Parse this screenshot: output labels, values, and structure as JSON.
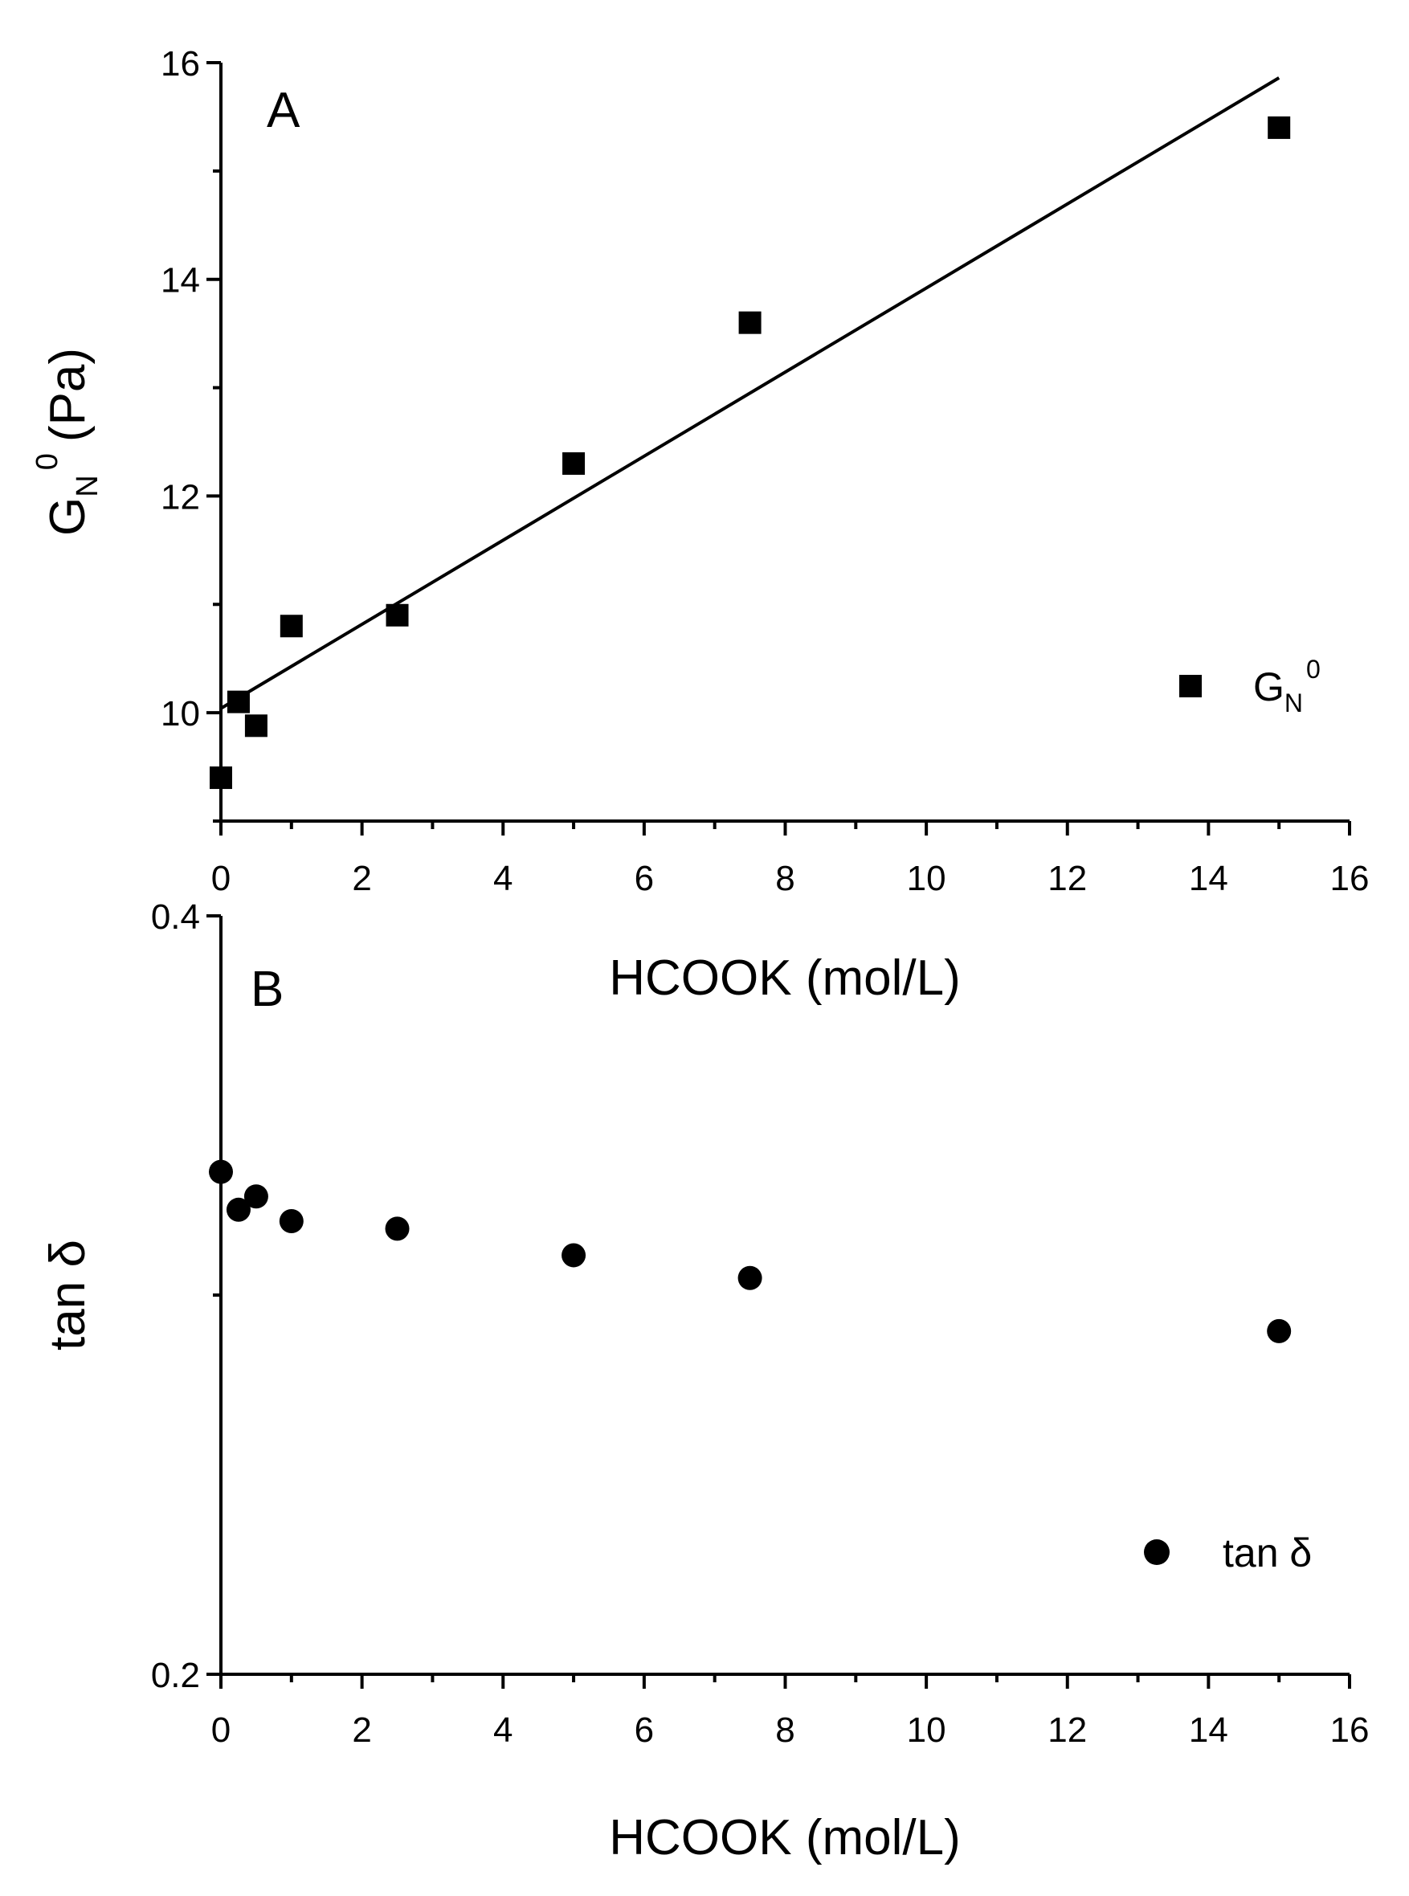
{
  "chart_data": [
    {
      "panel": "A",
      "type": "scatter",
      "xlabel": "HCOOK (mol/L)",
      "ylabel": "G_N^0 (Pa)",
      "ylabel_parts": {
        "main": "G",
        "sub": "N",
        "sup": "0",
        "unit": "(Pa)"
      },
      "xlim": [
        0,
        16
      ],
      "ylim": [
        9,
        16
      ],
      "x_ticks": [
        0,
        2,
        4,
        6,
        8,
        10,
        12,
        14,
        16
      ],
      "y_ticks": [
        10,
        12,
        14,
        16
      ],
      "x_tick_labels": [
        "0",
        "2",
        "4",
        "6",
        "8",
        "10",
        "12",
        "14",
        "16"
      ],
      "y_tick_labels": [
        "10",
        "12",
        "14",
        "16"
      ],
      "marker": "square",
      "legend": {
        "label": "G_N^0",
        "main": "G",
        "sub": "N",
        "sup": "0",
        "position": "right"
      },
      "series": [
        {
          "name": "G_N^0",
          "x": [
            0,
            0.25,
            0.5,
            1.0,
            2.5,
            5.0,
            7.5,
            15.0
          ],
          "y": [
            9.4,
            10.1,
            9.88,
            10.8,
            10.9,
            12.3,
            13.6,
            15.4
          ]
        }
      ],
      "fit_line": {
        "x": [
          0,
          15.0
        ],
        "y": [
          10.04,
          15.86
        ]
      }
    },
    {
      "panel": "B",
      "type": "scatter",
      "xlabel": "HCOOK (mol/L)",
      "ylabel": "tan δ",
      "xlim": [
        0,
        16
      ],
      "ylim": [
        0.2,
        0.4
      ],
      "x_ticks": [
        0,
        2,
        4,
        6,
        8,
        10,
        12,
        14,
        16
      ],
      "y_ticks": [
        0.2,
        0.4
      ],
      "x_tick_labels": [
        "0",
        "2",
        "4",
        "6",
        "8",
        "10",
        "12",
        "14",
        "16"
      ],
      "y_tick_labels": [
        "0.2",
        "0.4"
      ],
      "marker": "circle",
      "legend": {
        "label": "tan δ",
        "position": "bottom-right"
      },
      "series": [
        {
          "name": "tan δ",
          "x": [
            0,
            0.25,
            0.5,
            1.0,
            2.5,
            5.0,
            7.5,
            15.0
          ],
          "y": [
            0.3325,
            0.3225,
            0.326,
            0.3195,
            0.3175,
            0.3105,
            0.3045,
            0.2905
          ]
        }
      ]
    }
  ]
}
